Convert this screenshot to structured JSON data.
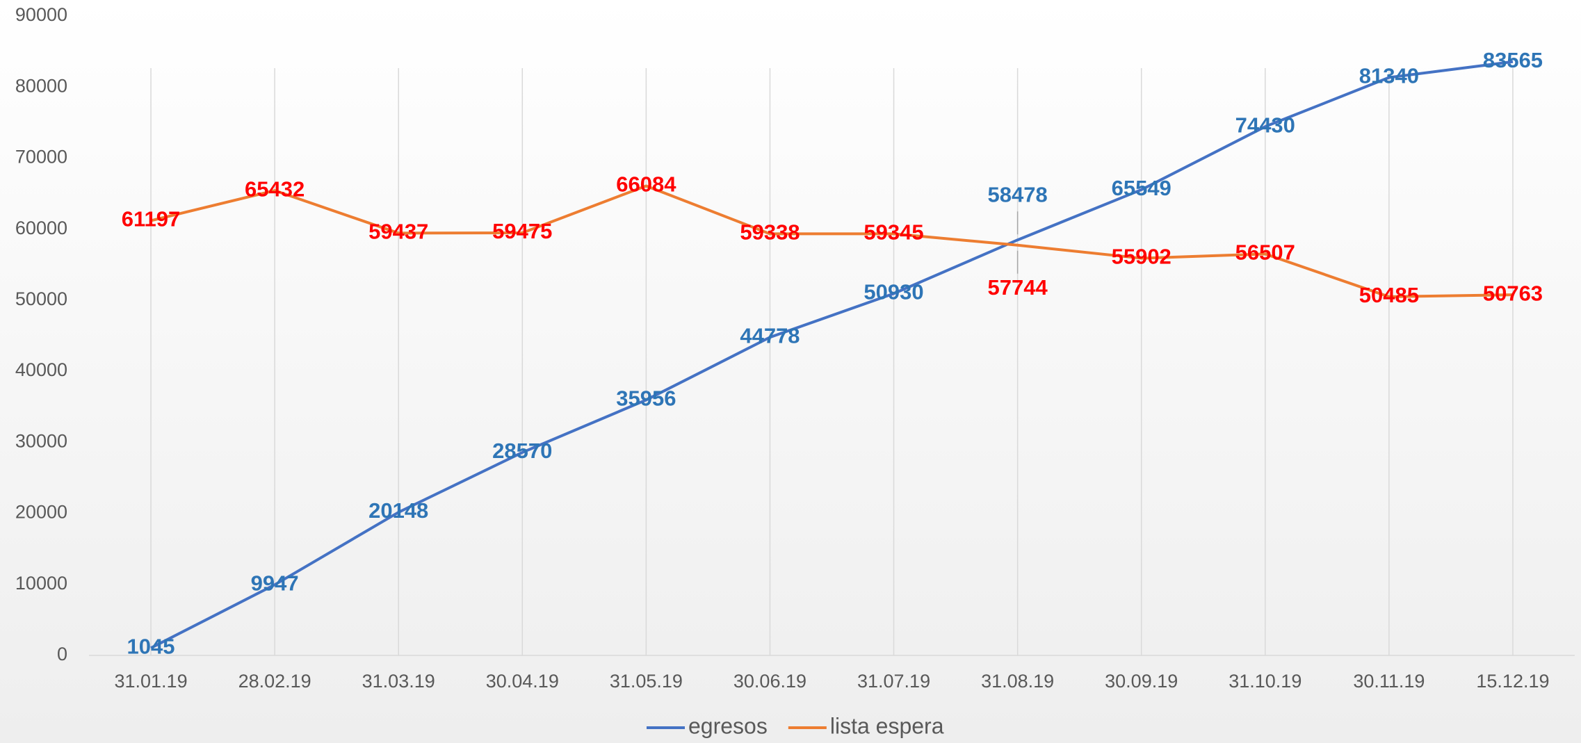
{
  "chart_data": {
    "type": "line",
    "categories": [
      "31.01.19",
      "28.02.19",
      "31.03.19",
      "30.04.19",
      "31.05.19",
      "30.06.19",
      "31.07.19",
      "31.08.19",
      "30.09.19",
      "31.10.19",
      "30.11.19",
      "15.12.19"
    ],
    "series": [
      {
        "name": "egresos",
        "color": "#4472c4",
        "label_color": "#2e75b6",
        "values": [
          1045,
          9947,
          20148,
          28570,
          35956,
          44778,
          50930,
          58478,
          65549,
          74430,
          81340,
          83565
        ]
      },
      {
        "name": "lista espera",
        "color": "#ed7d31",
        "label_color": "#ff0000",
        "values": [
          61197,
          65432,
          59437,
          59475,
          66084,
          59338,
          59345,
          57744,
          55902,
          56507,
          50485,
          50763
        ]
      }
    ],
    "ylim": [
      0,
      90000
    ],
    "yticks": [
      0,
      10000,
      20000,
      30000,
      40000,
      50000,
      60000,
      70000,
      80000,
      90000
    ],
    "grid": true,
    "legend": "bottom"
  }
}
